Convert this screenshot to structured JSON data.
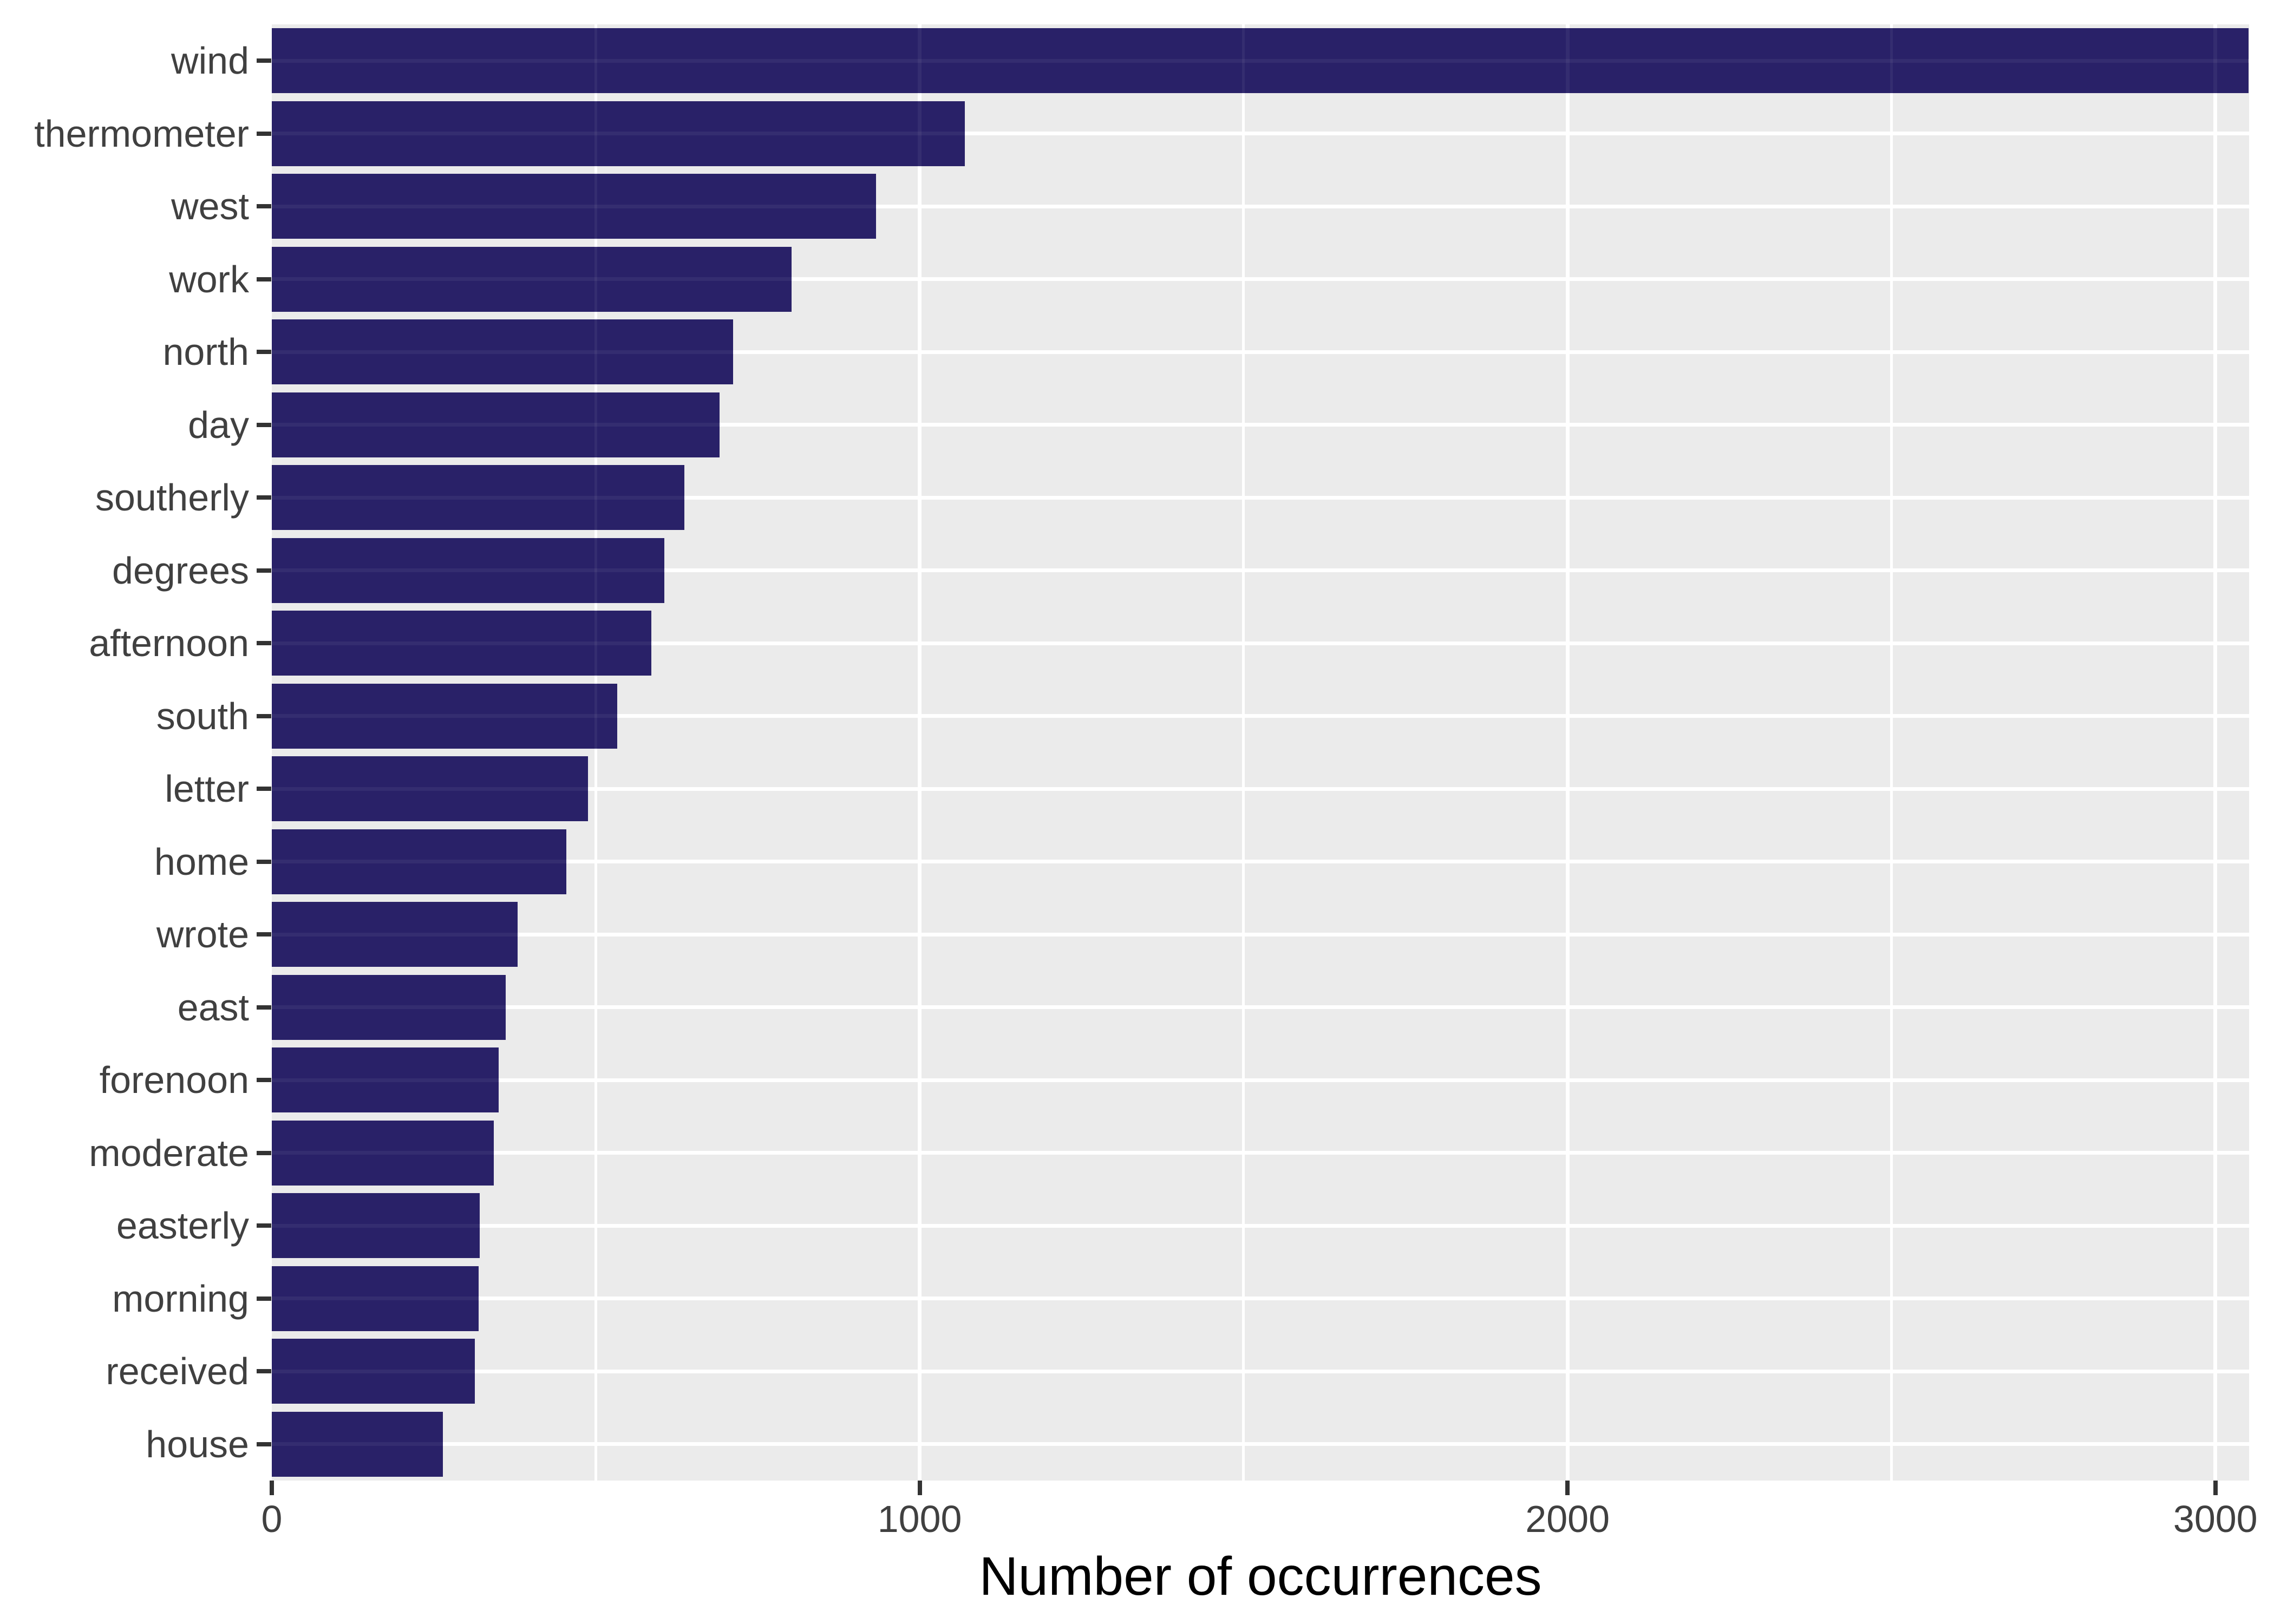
{
  "chart_data": {
    "type": "bar",
    "orientation": "horizontal",
    "title": "",
    "xlabel": "Number of occurrences",
    "ylabel": "",
    "categories": [
      "wind",
      "thermometer",
      "west",
      "work",
      "north",
      "day",
      "southerly",
      "degrees",
      "afternoon",
      "south",
      "letter",
      "home",
      "wrote",
      "east",
      "forenoon",
      "moderate",
      "easterly",
      "morning",
      "received",
      "house"
    ],
    "values": [
      3051,
      1070,
      933,
      802,
      712,
      691,
      637,
      606,
      586,
      533,
      488,
      455,
      379,
      361,
      350,
      343,
      321,
      319,
      313,
      264
    ],
    "x_tick_labels": [
      "0",
      "1000",
      "2000",
      "3000"
    ],
    "x_ticks": [
      0,
      1000,
      2000,
      3000
    ],
    "x_minor_gridlines": [
      500,
      1500,
      2500
    ],
    "xlim": [
      0,
      3052
    ],
    "grid": true,
    "legend": false,
    "bar_color": "#292168",
    "panel_background": "#EBEBEB",
    "gridline_color": "#FFFFFF",
    "tick_label_color": "#404040",
    "tick_mark_color": "#333333",
    "axis_title_color": "#000000"
  }
}
